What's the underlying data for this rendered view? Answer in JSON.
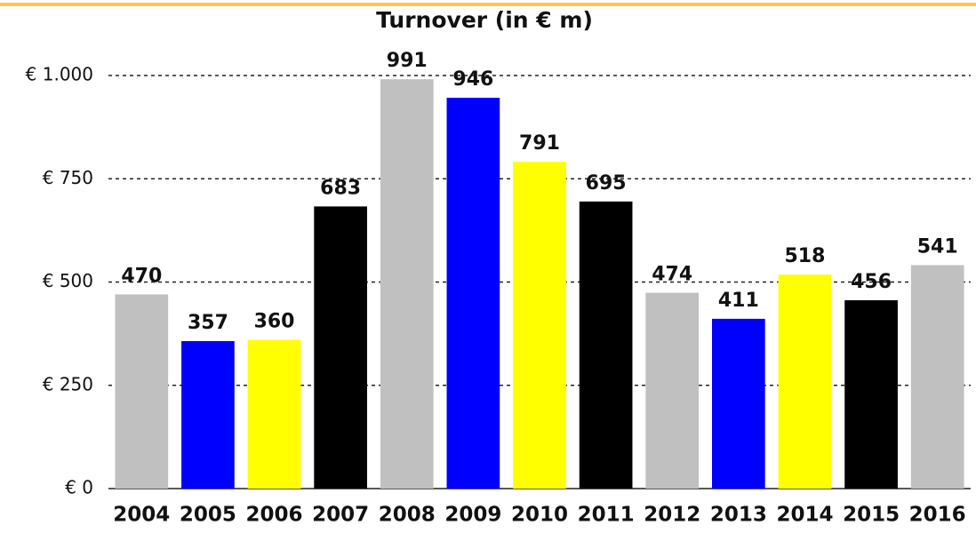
{
  "chart_data": {
    "type": "bar",
    "title": "Turnover (in € m)",
    "categories": [
      "2004",
      "2005",
      "2006",
      "2007",
      "2008",
      "2009",
      "2010",
      "2011",
      "2012",
      "2013",
      "2014",
      "2015",
      "2016"
    ],
    "values": [
      470,
      357,
      360,
      683,
      991,
      946,
      791,
      695,
      474,
      411,
      518,
      456,
      541
    ],
    "colors": [
      "#c0c0c0",
      "#0000ff",
      "#ffff00",
      "#000000",
      "#c0c0c0",
      "#0000ff",
      "#ffff00",
      "#000000",
      "#c0c0c0",
      "#0000ff",
      "#ffff00",
      "#000000",
      "#c0c0c0"
    ],
    "ylim": [
      0,
      1000
    ],
    "yticks": [
      {
        "value": 0,
        "label": "€ 0"
      },
      {
        "value": 250,
        "label": "€ 250"
      },
      {
        "value": 500,
        "label": "€ 500"
      },
      {
        "value": 750,
        "label": "€ 750"
      },
      {
        "value": 1000,
        "label": "€ 1.000"
      }
    ],
    "grid": true
  }
}
